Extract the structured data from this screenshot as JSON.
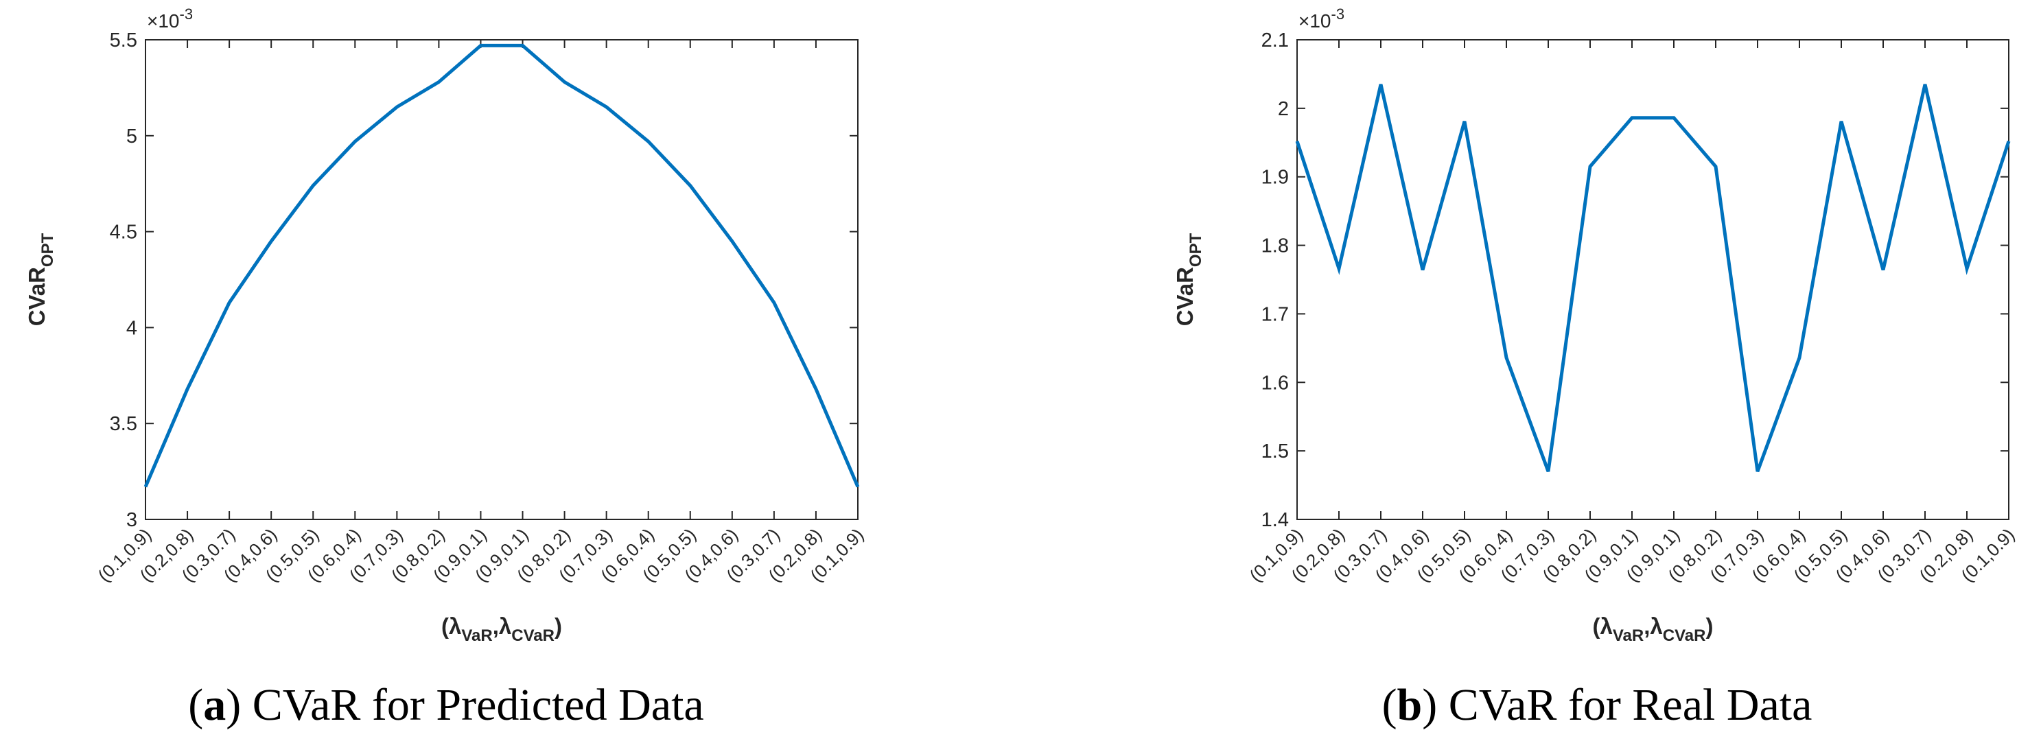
{
  "chart_data": [
    {
      "id": "a",
      "type": "line",
      "title": "",
      "xlabel": "(λVaR,λCVaR)",
      "xlabel_parts": {
        "lambda": "λ",
        "var_sub": "VaR",
        "cvar_sub": "CVaR"
      },
      "ylabel": "CVaROPT",
      "ylabel_parts": {
        "base": "CVaR",
        "sub": "OPT"
      },
      "exponent_label": "×10^-3",
      "exponent_parts": {
        "base": "×10",
        "exp": "-3"
      },
      "ylim": [
        3,
        5.5
      ],
      "yticks": [
        "3",
        "3.5",
        "4",
        "4.5",
        "5",
        "5.5"
      ],
      "ytick_values": [
        3,
        3.5,
        4,
        4.5,
        5,
        5.5
      ],
      "categories": [
        "(0.1,0.9)",
        "(0.2,0.8)",
        "(0.3,0.7)",
        "(0.4,0.6)",
        "(0.5,0.5)",
        "(0.6,0.4)",
        "(0.7,0.3)",
        "(0.8,0.2)",
        "(0.9,0.1)",
        "(0.9,0.1)",
        "(0.8,0.2)",
        "(0.7,0.3)",
        "(0.6,0.4)",
        "(0.5,0.5)",
        "(0.4,0.6)",
        "(0.3,0.7)",
        "(0.2,0.8)",
        "(0.1,0.9)"
      ],
      "series": [
        {
          "values": [
            3.17,
            3.68,
            4.13,
            4.45,
            4.74,
            4.97,
            5.15,
            5.28,
            5.47,
            5.47,
            5.28,
            5.15,
            4.97,
            4.74,
            4.45,
            4.13,
            3.68,
            3.17
          ]
        }
      ],
      "color": "#0072BD",
      "grid": false,
      "caption": {
        "label": "a",
        "text": ") CVaR for Predicted Data"
      }
    },
    {
      "id": "b",
      "type": "line",
      "title": "",
      "xlabel": "(λVaR,λCVaR)",
      "xlabel_parts": {
        "lambda": "λ",
        "var_sub": "VaR",
        "cvar_sub": "CVaR"
      },
      "ylabel": "CVaROPT",
      "ylabel_parts": {
        "base": "CVaR",
        "sub": "OPT"
      },
      "exponent_label": "×10^-3",
      "exponent_parts": {
        "base": "×10",
        "exp": "-3"
      },
      "ylim": [
        1.4,
        2.1
      ],
      "yticks": [
        "1.4",
        "1.5",
        "1.6",
        "1.7",
        "1.8",
        "1.9",
        "2",
        "2.1"
      ],
      "ytick_values": [
        1.4,
        1.5,
        1.6,
        1.7,
        1.8,
        1.9,
        2.0,
        2.1
      ],
      "categories": [
        "(0.1,0.9)",
        "(0.2,0.8)",
        "(0.3,0.7)",
        "(0.4,0.6)",
        "(0.5,0.5)",
        "(0.6,0.4)",
        "(0.7,0.3)",
        "(0.8,0.2)",
        "(0.9,0.1)",
        "(0.9,0.1)",
        "(0.8,0.2)",
        "(0.7,0.3)",
        "(0.6,0.4)",
        "(0.5,0.5)",
        "(0.4,0.6)",
        "(0.3,0.7)",
        "(0.2,0.8)",
        "(0.1,0.9)"
      ],
      "series": [
        {
          "values": [
            1.952,
            1.766,
            2.035,
            1.764,
            1.981,
            1.636,
            1.47,
            1.915,
            1.986,
            1.986,
            1.915,
            1.47,
            1.636,
            1.981,
            1.764,
            2.035,
            1.766,
            1.952
          ]
        }
      ],
      "color": "#0072BD",
      "grid": false,
      "caption": {
        "label": "b",
        "text": ") CVaR for Real Data"
      }
    }
  ]
}
